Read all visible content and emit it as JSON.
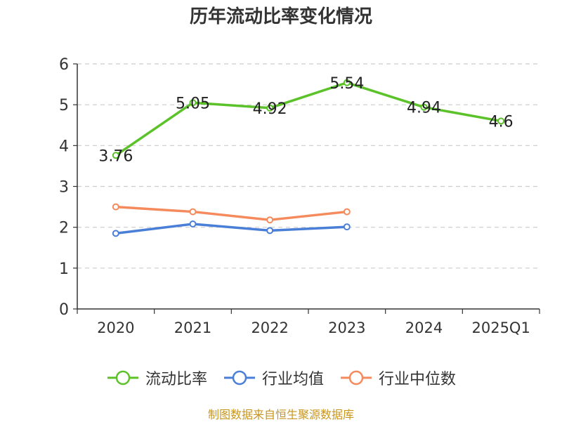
{
  "title": "历年流动比率变化情况",
  "source": "制图数据来自恒生聚源数据库",
  "colors": {
    "current_ratio": "#5cc22a",
    "industry_mean": "#4a7fd8",
    "industry_median": "#f58a5c",
    "axis": "#333333",
    "grid": "#cccccc"
  },
  "chart_data": {
    "type": "line",
    "title": "历年流动比率变化情况",
    "xlabel": "",
    "ylabel": "",
    "categories": [
      "2020",
      "2021",
      "2022",
      "2023",
      "2024",
      "2025Q1"
    ],
    "ylim": [
      0,
      6
    ],
    "yticks": [
      0,
      1,
      2,
      3,
      4,
      5,
      6
    ],
    "grid": true,
    "legend_position": "bottom",
    "series": [
      {
        "name": "流动比率",
        "color": "#5cc22a",
        "values": [
          3.76,
          5.05,
          4.92,
          5.54,
          4.94,
          4.6
        ],
        "labels": [
          "3.76",
          "5.05",
          "4.92",
          "5.54",
          "4.94",
          "4.6"
        ]
      },
      {
        "name": "行业均值",
        "color": "#4a7fd8",
        "values": [
          1.85,
          2.08,
          1.92,
          2.01,
          null,
          null
        ]
      },
      {
        "name": "行业中位数",
        "color": "#f58a5c",
        "values": [
          2.5,
          2.38,
          2.18,
          2.38,
          null,
          null
        ]
      }
    ]
  }
}
